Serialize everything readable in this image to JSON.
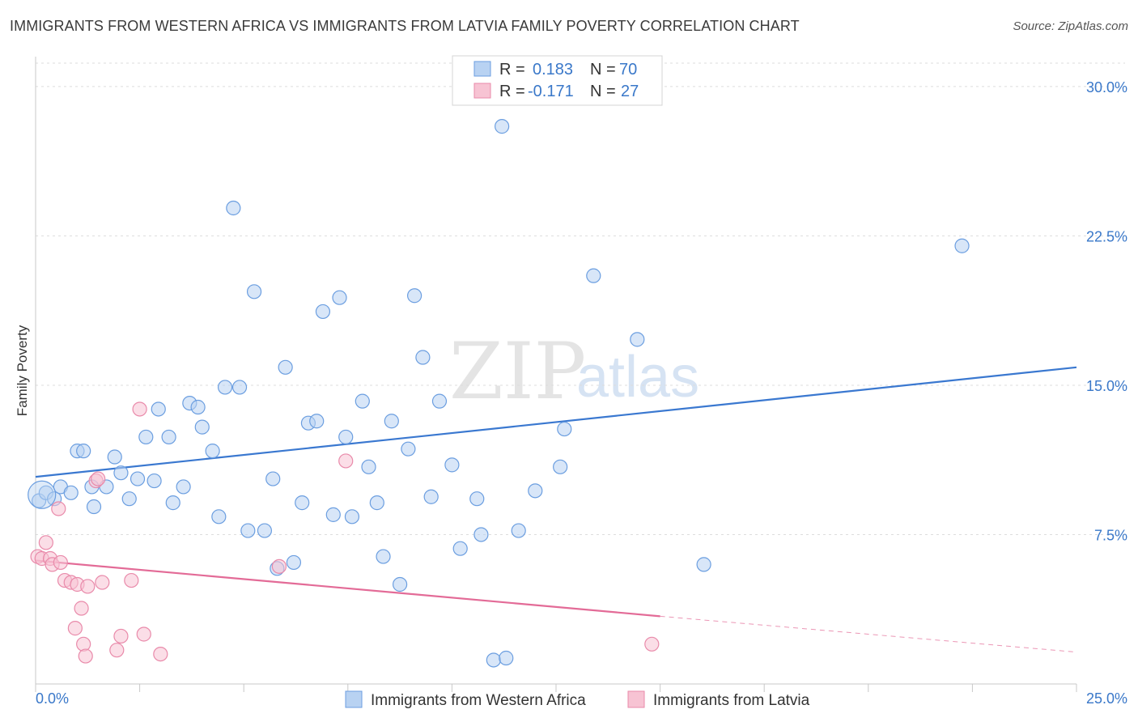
{
  "header": {
    "title": "IMMIGRANTS FROM WESTERN AFRICA VS IMMIGRANTS FROM LATVIA FAMILY POVERTY CORRELATION CHART",
    "source": "Source: ZipAtlas.com"
  },
  "watermark": {
    "zip": "ZIP",
    "atlas": "atlas"
  },
  "colors": {
    "blue_fill": "#b8d2f2",
    "blue_stroke": "#6b9ee0",
    "blue_line": "#3a78d0",
    "pink_fill": "#f7c3d3",
    "pink_stroke": "#e98aaa",
    "pink_line": "#e36b97",
    "tick_text": "#3a78c9",
    "grid": "#dddddd"
  },
  "legend": {
    "rows": [
      {
        "r_label": "R =",
        "r_value": "0.183",
        "n_label": "N =",
        "n_value": "70"
      },
      {
        "r_label": "R =",
        "r_value": "-0.171",
        "n_label": "N =",
        "n_value": "27"
      }
    ]
  },
  "bottom_legend": {
    "items": [
      "Immigrants from Western Africa",
      "Immigrants from Latvia"
    ]
  },
  "chart_data": {
    "type": "scatter",
    "title": "IMMIGRANTS FROM WESTERN AFRICA VS IMMIGRANTS FROM LATVIA FAMILY POVERTY CORRELATION CHART",
    "xlabel": "",
    "ylabel": "Family Poverty",
    "xlim": [
      0,
      25
    ],
    "ylim": [
      0,
      31.5
    ],
    "x_tick_labels": [
      "0.0%",
      "25.0%"
    ],
    "y_ticks": [
      7.5,
      15.0,
      22.5,
      30.0
    ],
    "y_tick_labels": [
      "7.5%",
      "15.0%",
      "22.5%",
      "30.0%"
    ],
    "grid": "horizontal dashed",
    "legend_position": "top-center",
    "series": [
      {
        "name": "Immigrants from Western Africa",
        "color": "#6b9ee0",
        "r": 0.183,
        "n": 70,
        "trend": {
          "x": [
            0,
            25
          ],
          "y": [
            10.4,
            15.9
          ],
          "style": "solid"
        },
        "points": [
          [
            0.08,
            9.2
          ],
          [
            0.25,
            9.6
          ],
          [
            0.45,
            9.3
          ],
          [
            0.6,
            9.9
          ],
          [
            0.85,
            9.6
          ],
          [
            1.0,
            11.7
          ],
          [
            1.15,
            11.7
          ],
          [
            1.35,
            9.9
          ],
          [
            1.4,
            8.9
          ],
          [
            1.7,
            9.9
          ],
          [
            1.9,
            11.4
          ],
          [
            2.05,
            10.6
          ],
          [
            2.25,
            9.3
          ],
          [
            2.45,
            10.3
          ],
          [
            2.65,
            12.4
          ],
          [
            2.85,
            10.2
          ],
          [
            2.95,
            13.8
          ],
          [
            3.2,
            12.4
          ],
          [
            3.3,
            9.1
          ],
          [
            3.55,
            9.9
          ],
          [
            3.7,
            14.1
          ],
          [
            3.9,
            13.9
          ],
          [
            4.0,
            12.9
          ],
          [
            4.25,
            11.7
          ],
          [
            4.4,
            8.4
          ],
          [
            4.55,
            14.9
          ],
          [
            4.75,
            23.9
          ],
          [
            4.9,
            14.9
          ],
          [
            5.1,
            7.7
          ],
          [
            5.25,
            19.7
          ],
          [
            5.5,
            7.7
          ],
          [
            5.7,
            10.3
          ],
          [
            5.8,
            5.8
          ],
          [
            6.0,
            15.9
          ],
          [
            6.2,
            6.1
          ],
          [
            6.4,
            9.1
          ],
          [
            6.55,
            13.1
          ],
          [
            6.75,
            13.2
          ],
          [
            6.9,
            18.7
          ],
          [
            7.15,
            8.5
          ],
          [
            7.3,
            19.4
          ],
          [
            7.45,
            12.4
          ],
          [
            7.6,
            8.4
          ],
          [
            7.85,
            14.2
          ],
          [
            8.0,
            10.9
          ],
          [
            8.2,
            9.1
          ],
          [
            8.35,
            6.4
          ],
          [
            8.55,
            13.2
          ],
          [
            8.75,
            5.0
          ],
          [
            8.95,
            11.8
          ],
          [
            9.1,
            19.5
          ],
          [
            9.3,
            16.4
          ],
          [
            9.5,
            9.4
          ],
          [
            9.7,
            14.2
          ],
          [
            10.0,
            11.0
          ],
          [
            10.2,
            6.8
          ],
          [
            10.6,
            9.3
          ],
          [
            10.7,
            7.5
          ],
          [
            11.0,
            1.2
          ],
          [
            11.2,
            28.0
          ],
          [
            11.3,
            1.3
          ],
          [
            11.6,
            7.7
          ],
          [
            12.0,
            9.7
          ],
          [
            12.6,
            10.9
          ],
          [
            12.7,
            12.8
          ],
          [
            13.4,
            20.5
          ],
          [
            14.45,
            17.3
          ],
          [
            16.05,
            6.0
          ],
          [
            22.25,
            22.0
          ],
          [
            0.15,
            9.5
          ]
        ]
      },
      {
        "name": "Immigrants from Latvia",
        "color": "#e98aaa",
        "r": -0.171,
        "n": 27,
        "trend": {
          "x": [
            0,
            15
          ],
          "y": [
            6.2,
            3.4
          ],
          "style": "solid",
          "extended_x": [
            15,
            25
          ],
          "extended_y": [
            3.4,
            1.6
          ],
          "extended_style": "dashed"
        },
        "points": [
          [
            0.05,
            6.4
          ],
          [
            0.15,
            6.3
          ],
          [
            0.25,
            7.1
          ],
          [
            0.35,
            6.3
          ],
          [
            0.4,
            6.0
          ],
          [
            0.55,
            8.8
          ],
          [
            0.6,
            6.1
          ],
          [
            0.7,
            5.2
          ],
          [
            0.85,
            5.1
          ],
          [
            0.95,
            2.8
          ],
          [
            1.0,
            5.0
          ],
          [
            1.1,
            3.8
          ],
          [
            1.15,
            2.0
          ],
          [
            1.2,
            1.4
          ],
          [
            1.25,
            4.9
          ],
          [
            1.45,
            10.2
          ],
          [
            1.5,
            10.3
          ],
          [
            1.6,
            5.1
          ],
          [
            1.95,
            1.7
          ],
          [
            2.05,
            2.4
          ],
          [
            2.3,
            5.2
          ],
          [
            2.5,
            13.8
          ],
          [
            2.6,
            2.5
          ],
          [
            3.0,
            1.5
          ],
          [
            5.85,
            5.9
          ],
          [
            7.45,
            11.2
          ],
          [
            14.8,
            2.0
          ]
        ]
      }
    ]
  }
}
